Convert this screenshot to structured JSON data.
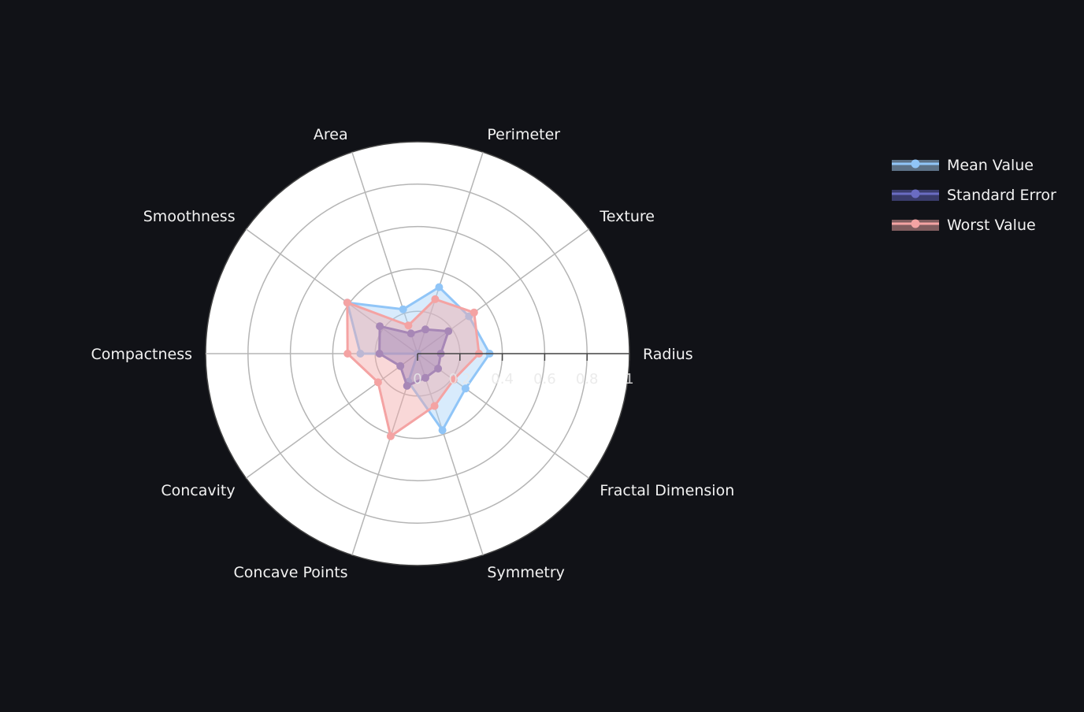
{
  "chart_data": {
    "type": "radar",
    "axes": [
      "Radius",
      "Texture",
      "Perimeter",
      "Area",
      "Smoothness",
      "Compactness",
      "Concavity",
      "Concave Points",
      "Symmetry",
      "Fractal Dimension"
    ],
    "radial_ticks": [
      "0",
      "0.2",
      "0.4",
      "0.6",
      "0.8",
      "1"
    ],
    "range": [
      0,
      1
    ],
    "legend_position": "top-right",
    "series": [
      {
        "name": "Mean Value",
        "line_color": "#90c5f7",
        "fill_color": "#a9d2f8",
        "values": [
          0.34,
          0.3,
          0.33,
          0.22,
          0.41,
          0.27,
          0.0,
          0.14,
          0.38,
          0.28
        ]
      },
      {
        "name": "Standard Error",
        "line_color": "#6a6cc2",
        "fill_color": "#6466c2",
        "values": [
          0.11,
          0.18,
          0.12,
          0.1,
          0.22,
          0.18,
          0.1,
          0.16,
          0.12,
          0.12
        ]
      },
      {
        "name": "Worst Value",
        "line_color": "#f4a3a3",
        "fill_color": "#f1a8a8",
        "values": [
          0.29,
          0.33,
          0.27,
          0.14,
          0.41,
          0.33,
          0.23,
          0.41,
          0.26,
          0.21
        ]
      }
    ]
  }
}
